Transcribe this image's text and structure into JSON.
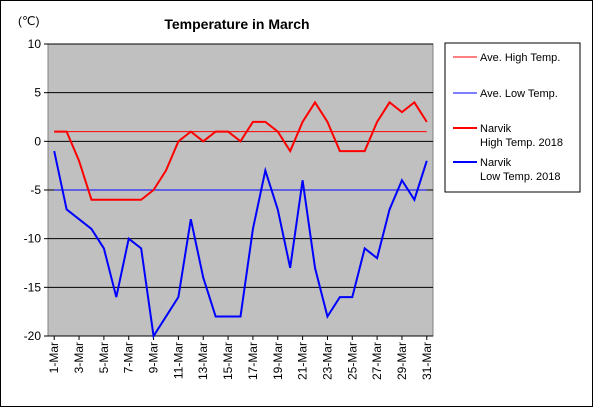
{
  "chart_data": {
    "type": "line",
    "title": "Temperature in March",
    "ylabel": "(℃)",
    "xlabel": "",
    "ylim": [
      -20,
      10
    ],
    "yticks": [
      10,
      5,
      0,
      -5,
      -10,
      -15,
      -20
    ],
    "grid": true,
    "legend_position": "right",
    "x": [
      1,
      2,
      3,
      4,
      5,
      6,
      7,
      8,
      9,
      10,
      11,
      12,
      13,
      14,
      15,
      16,
      17,
      18,
      19,
      20,
      21,
      22,
      23,
      24,
      25,
      26,
      27,
      28,
      29,
      30,
      31
    ],
    "xtick_labels": [
      "1-Mar",
      "3-Mar",
      "5-Mar",
      "7-Mar",
      "9-Mar",
      "11-Mar",
      "13-Mar",
      "15-Mar",
      "17-Mar",
      "19-Mar",
      "21-Mar",
      "23-Mar",
      "25-Mar",
      "27-Mar",
      "29-Mar",
      "31-Mar"
    ],
    "series": [
      {
        "name": "Ave. High Temp.",
        "color": "#ff0000",
        "width": 1,
        "values": [
          1,
          1,
          1,
          1,
          1,
          1,
          1,
          1,
          1,
          1,
          1,
          1,
          1,
          1,
          1,
          1,
          1,
          1,
          1,
          1,
          1,
          1,
          1,
          1,
          1,
          1,
          1,
          1,
          1,
          1,
          1
        ]
      },
      {
        "name": "Ave. Low Temp.",
        "color": "#0000ff",
        "width": 1,
        "values": [
          -5,
          -5,
          -5,
          -5,
          -5,
          -5,
          -5,
          -5,
          -5,
          -5,
          -5,
          -5,
          -5,
          -5,
          -5,
          -5,
          -5,
          -5,
          -5,
          -5,
          -5,
          -5,
          -5,
          -5,
          -5,
          -5,
          -5,
          -5,
          -5,
          -5,
          -5
        ]
      },
      {
        "name": "Narvik High Temp. 2018",
        "name_lines": [
          "Narvik",
          "High Temp. 2018"
        ],
        "color": "#ff0000",
        "width": 2,
        "values": [
          1,
          1,
          -2,
          -6,
          -6,
          -6,
          -6,
          -6,
          -5,
          -3,
          0,
          1,
          0,
          1,
          1,
          0,
          2,
          2,
          1,
          -1,
          2,
          4,
          2,
          -1,
          -1,
          -1,
          2,
          4,
          3,
          4,
          2
        ]
      },
      {
        "name": "Narvik Low Temp. 2018",
        "name_lines": [
          "Narvik",
          "Low Temp. 2018"
        ],
        "color": "#0000ff",
        "width": 2,
        "values": [
          -1,
          -7,
          -8,
          -9,
          -11,
          -16,
          -10,
          -11,
          -20,
          -18,
          -16,
          -8,
          -14,
          -18,
          -18,
          -18,
          -9,
          -3,
          -7,
          -13,
          -4,
          -13,
          -18,
          -16,
          -16,
          -11,
          -12,
          -7,
          -4,
          -6,
          -2
        ]
      }
    ]
  }
}
